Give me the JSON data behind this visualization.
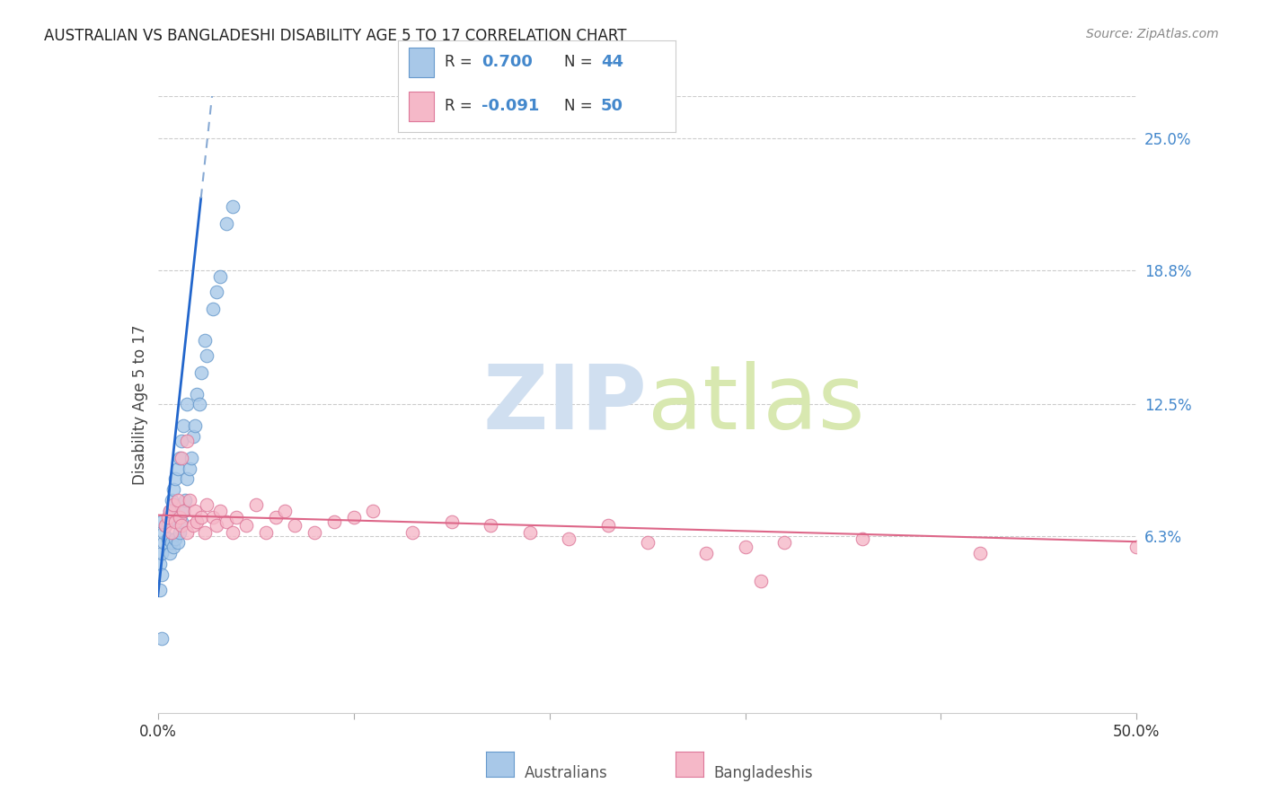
{
  "title": "AUSTRALIAN VS BANGLADESHI DISABILITY AGE 5 TO 17 CORRELATION CHART",
  "source": "Source: ZipAtlas.com",
  "ylabel": "Disability Age 5 to 17",
  "xlim": [
    0.0,
    0.5
  ],
  "ylim": [
    -0.02,
    0.27
  ],
  "yticks_right": [
    0.063,
    0.125,
    0.188,
    0.25
  ],
  "ytick_labels_right": [
    "6.3%",
    "12.5%",
    "18.8%",
    "25.0%"
  ],
  "background_color": "#ffffff",
  "grid_color": "#cccccc",
  "aus_color": "#a8c8e8",
  "aus_edge_color": "#6699cc",
  "ban_color": "#f5b8c8",
  "ban_edge_color": "#dd7799",
  "watermark_color": "#d0dff0",
  "aus_R": 0.7,
  "aus_N": 44,
  "ban_R": -0.091,
  "ban_N": 50,
  "legend_label_aus": "Australians",
  "legend_label_ban": "Bangladeshis",
  "aus_scatter_x": [
    0.001,
    0.002,
    0.002,
    0.002,
    0.003,
    0.003,
    0.004,
    0.005,
    0.005,
    0.006,
    0.006,
    0.007,
    0.007,
    0.008,
    0.008,
    0.009,
    0.009,
    0.01,
    0.01,
    0.011,
    0.011,
    0.012,
    0.012,
    0.013,
    0.013,
    0.014,
    0.015,
    0.015,
    0.016,
    0.017,
    0.018,
    0.019,
    0.02,
    0.021,
    0.022,
    0.024,
    0.025,
    0.028,
    0.03,
    0.032,
    0.035,
    0.038,
    0.001,
    0.002
  ],
  "aus_scatter_y": [
    0.05,
    0.045,
    0.055,
    0.015,
    0.06,
    0.065,
    0.068,
    0.062,
    0.07,
    0.055,
    0.075,
    0.06,
    0.08,
    0.058,
    0.085,
    0.062,
    0.09,
    0.06,
    0.095,
    0.065,
    0.1,
    0.07,
    0.108,
    0.075,
    0.115,
    0.08,
    0.09,
    0.125,
    0.095,
    0.1,
    0.11,
    0.115,
    0.13,
    0.125,
    0.14,
    0.155,
    0.148,
    0.17,
    0.178,
    0.185,
    0.21,
    0.218,
    0.038,
    0.07
  ],
  "ban_scatter_x": [
    0.004,
    0.005,
    0.006,
    0.007,
    0.008,
    0.009,
    0.01,
    0.011,
    0.012,
    0.013,
    0.015,
    0.016,
    0.018,
    0.019,
    0.02,
    0.022,
    0.024,
    0.025,
    0.028,
    0.03,
    0.032,
    0.035,
    0.038,
    0.04,
    0.045,
    0.05,
    0.055,
    0.06,
    0.065,
    0.07,
    0.08,
    0.09,
    0.1,
    0.11,
    0.13,
    0.15,
    0.17,
    0.19,
    0.21,
    0.23,
    0.25,
    0.28,
    0.3,
    0.32,
    0.36,
    0.42,
    0.012,
    0.015,
    0.308,
    0.5
  ],
  "ban_scatter_y": [
    0.068,
    0.072,
    0.075,
    0.065,
    0.078,
    0.07,
    0.08,
    0.072,
    0.068,
    0.075,
    0.065,
    0.08,
    0.068,
    0.075,
    0.07,
    0.072,
    0.065,
    0.078,
    0.072,
    0.068,
    0.075,
    0.07,
    0.065,
    0.072,
    0.068,
    0.078,
    0.065,
    0.072,
    0.075,
    0.068,
    0.065,
    0.07,
    0.072,
    0.075,
    0.065,
    0.07,
    0.068,
    0.065,
    0.062,
    0.068,
    0.06,
    0.055,
    0.058,
    0.06,
    0.062,
    0.055,
    0.1,
    0.108,
    0.042,
    0.058
  ],
  "blue_line_color": "#2266cc",
  "blue_dash_color": "#88aad4",
  "pink_line_color": "#dd6688"
}
